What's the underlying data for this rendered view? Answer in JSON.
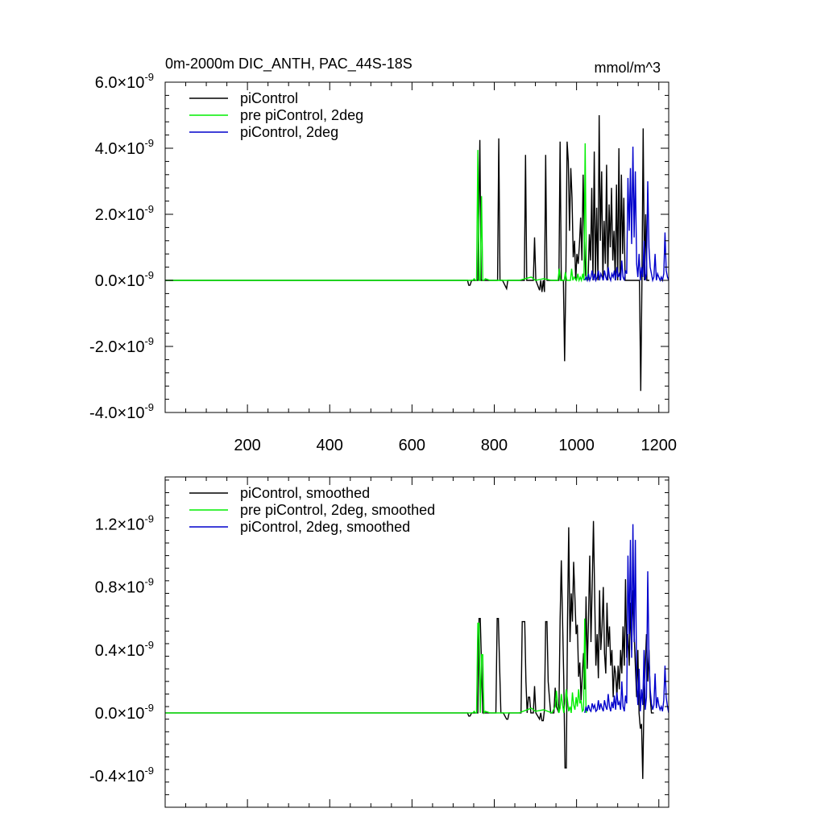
{
  "chart_data": [
    {
      "type": "line",
      "title": "0m-2000m DIC_ANTH, PAC_44S-18S",
      "units": "mmol/m^3",
      "xlim": [
        0,
        1224
      ],
      "ylim": [
        -4e-09,
        6e-09
      ],
      "xticks": [
        200,
        400,
        600,
        800,
        1000,
        1200
      ],
      "xtick_labels": [
        "200",
        "400",
        "600",
        "800",
        "1000",
        "1200"
      ],
      "yticks": [
        -4e-09,
        -2e-09,
        0.0,
        2e-09,
        4e-09,
        6e-09
      ],
      "ytick_mantissas": [
        "-4.0",
        "-2.0",
        "0.0",
        "2.0",
        "4.0",
        "6.0"
      ],
      "ytick_suffix": "×10",
      "ytick_exponent": "-9",
      "legend_position": "top-left",
      "series": [
        {
          "name": "piControl",
          "color": "#000000",
          "x": [
            0,
            720,
            735,
            738,
            741,
            745,
            760,
            765,
            768,
            771,
            808,
            811,
            814,
            820,
            830,
            833,
            836,
            873,
            876,
            879,
            895,
            898,
            901,
            910,
            913,
            916,
            919,
            922,
            925,
            928,
            931,
            957,
            960,
            963,
            968,
            971,
            974,
            977,
            980,
            983,
            986,
            989,
            992,
            995,
            998,
            1001,
            1004,
            1007,
            1010,
            1013,
            1016,
            1019,
            1022,
            1028,
            1031,
            1034,
            1037,
            1040,
            1043,
            1046,
            1049,
            1052,
            1055,
            1058,
            1061,
            1064,
            1067,
            1070,
            1073,
            1076,
            1079,
            1082,
            1085,
            1088,
            1091,
            1094,
            1097,
            1100,
            1103,
            1106,
            1109,
            1112,
            1115,
            1118,
            1121,
            1124,
            1127,
            1130,
            1133,
            1136,
            1150,
            1153,
            1156,
            1159,
            1162,
            1165,
            1168,
            1171,
            1174,
            1177
          ],
          "y": [
            0,
            0,
            0,
            -1.5e-10,
            -1.5e-10,
            0,
            0,
            4.25e-09,
            0,
            0,
            0,
            4.3e-09,
            0,
            0,
            -2.5e-10,
            0,
            0,
            0,
            3.8e-09,
            0,
            0,
            1.3e-09,
            0,
            -3e-10,
            0,
            -3.5e-10,
            0,
            -3.5e-10,
            3.8e-09,
            0,
            0,
            0,
            4.2e-09,
            0,
            0,
            -2.45e-09,
            0,
            4.2e-09,
            3.6e-09,
            1.5e-09,
            3.4e-09,
            2.5e-09,
            7e-10,
            1.2e-09,
            0,
            8e-10,
            5e-10,
            1.1e-09,
            1.9e-09,
            6e-10,
            3.2e-09,
            1.2e-09,
            1.5e-10,
            0,
            1.4e-09,
            6e-10,
            2.8e-09,
            0,
            3.9e-09,
            0,
            2.2e-09,
            0,
            5e-09,
            1.2e-09,
            3.3e-09,
            0,
            1.8e-09,
            5e-10,
            3.5e-09,
            0,
            2.3e-09,
            1e-09,
            2.8e-09,
            6e-10,
            1.5e-09,
            0,
            2.9e-09,
            0,
            4e-09,
            0,
            3.2e-09,
            8e-10,
            2.5e-09,
            0,
            0,
            0,
            0,
            0,
            0,
            0,
            0,
            0,
            -3.35e-09,
            0,
            4.6e-09,
            0,
            2e-09,
            0,
            0,
            0
          ]
        },
        {
          "name": "pre piControl, 2deg",
          "color": "#00ee00",
          "x": [
            0,
            720,
            748,
            751,
            754,
            757,
            760,
            763,
            766,
            769,
            772,
            775,
            778,
            790,
            810,
            830,
            860,
            890,
            900,
            920,
            940,
            955,
            958,
            961,
            970,
            973,
            976,
            985,
            988,
            991,
            994,
            1000,
            1003,
            1006,
            1009,
            1012,
            1015,
            1018,
            1021,
            1024
          ],
          "y": [
            0,
            0,
            0,
            5e-11,
            0,
            0,
            3.95e-09,
            0,
            0,
            2.55e-09,
            0,
            0,
            5e-11,
            0,
            0,
            0,
            0,
            1e-10,
            0,
            5e-11,
            0,
            0,
            3.5e-10,
            0,
            0,
            2.5e-10,
            0,
            0,
            3.5e-10,
            0,
            1e-10,
            0,
            2e-10,
            0,
            1e-10,
            0,
            2e-10,
            0,
            4.15e-09,
            0
          ]
        },
        {
          "name": "piControl, 2deg",
          "color": "#0000cc",
          "x": [
            1020,
            1023,
            1026,
            1029,
            1032,
            1035,
            1038,
            1041,
            1044,
            1047,
            1050,
            1053,
            1056,
            1059,
            1062,
            1065,
            1068,
            1071,
            1074,
            1077,
            1080,
            1083,
            1086,
            1089,
            1092,
            1095,
            1098,
            1101,
            1104,
            1107,
            1110,
            1113,
            1116,
            1119,
            1122,
            1125,
            1128,
            1131,
            1134,
            1137,
            1140,
            1143,
            1146,
            1149,
            1152,
            1155,
            1158,
            1161,
            1164,
            1167,
            1170,
            1173,
            1176,
            1179,
            1182,
            1185,
            1188,
            1191,
            1194,
            1197,
            1200,
            1203,
            1206,
            1209,
            1212,
            1215,
            1218,
            1221,
            1224
          ],
          "y": [
            0,
            1e-10,
            0,
            2e-10,
            0,
            1e-10,
            3e-10,
            0,
            2e-10,
            0,
            1e-10,
            3e-10,
            0,
            2e-10,
            1e-10,
            0,
            3e-10,
            1e-10,
            0,
            4e-10,
            1e-10,
            0,
            2e-10,
            1e-10,
            3e-10,
            0,
            4e-10,
            1e-10,
            2e-10,
            0,
            6e-10,
            1e-10,
            0,
            3e-10,
            2e-10,
            3.1e-09,
            1.5e-09,
            3.4e-09,
            1.1e-09,
            4.05e-09,
            1.3e-09,
            3.3e-09,
            5e-10,
            1e-10,
            8e-10,
            0,
            4e-10,
            1e-10,
            1.2e-09,
            0,
            2e-10,
            3e-09,
            1e-09,
            4e-10,
            2e-10,
            0,
            1e-10,
            8e-10,
            0,
            2e-10,
            1e-10,
            0,
            1e-10,
            0,
            2e-10,
            1.45e-09,
            3e-10,
            1e-10,
            0
          ]
        }
      ]
    },
    {
      "type": "line",
      "xlim": [
        0,
        1224
      ],
      "ylim": [
        -6e-10,
        1.5e-09
      ],
      "xticks": [
        200,
        400,
        600,
        800,
        1000,
        1200
      ],
      "yticks": [
        -4e-10,
        0.0,
        4e-10,
        8e-10,
        1.2e-09
      ],
      "ytick_mantissas": [
        "-0.4",
        "0.0",
        "0.4",
        "0.8",
        "1.2"
      ],
      "ytick_suffix": "×10",
      "ytick_exponent": "-9",
      "legend_position": "top-left",
      "series": [
        {
          "name": "piControl, smoothed",
          "color": "#000000",
          "x": [
            0,
            720,
            735,
            738,
            741,
            745,
            760,
            763,
            766,
            769,
            772,
            778,
            804,
            807,
            810,
            813,
            816,
            819,
            822,
            830,
            833,
            836,
            865,
            868,
            871,
            874,
            877,
            880,
            883,
            886,
            889,
            895,
            898,
            901,
            910,
            913,
            916,
            919,
            922,
            925,
            928,
            931,
            934,
            937,
            945,
            948,
            951,
            954,
            957,
            960,
            963,
            966,
            969,
            972,
            975,
            978,
            981,
            984,
            987,
            990,
            993,
            996,
            999,
            1002,
            1005,
            1008,
            1011,
            1014,
            1017,
            1020,
            1023,
            1026,
            1029,
            1032,
            1035,
            1038,
            1041,
            1044,
            1047,
            1050,
            1053,
            1056,
            1059,
            1062,
            1065,
            1068,
            1071,
            1074,
            1077,
            1080,
            1083,
            1086,
            1089,
            1092,
            1095,
            1098,
            1101,
            1104,
            1107,
            1110,
            1113,
            1116,
            1119,
            1122,
            1125,
            1128,
            1131,
            1134,
            1137,
            1140,
            1143,
            1146,
            1149,
            1152,
            1155,
            1158,
            1161,
            1164,
            1167,
            1170,
            1173,
            1176,
            1179,
            1182,
            1185,
            1188
          ],
          "y": [
            0,
            0,
            0,
            -2e-11,
            -2e-11,
            0,
            0,
            6e-10,
            6e-10,
            3e-10,
            0,
            0,
            0,
            6e-10,
            6e-10,
            3e-10,
            0,
            0,
            0,
            -4e-11,
            -4e-11,
            0,
            0,
            5.8e-10,
            5.8e-10,
            5.8e-10,
            2e-10,
            0,
            1e-10,
            1e-10,
            0,
            0,
            1.7e-10,
            0,
            -4e-11,
            0,
            -5e-11,
            -5e-11,
            2e-11,
            5.8e-10,
            5.8e-10,
            2e-10,
            1e-10,
            0,
            0,
            1.6e-10,
            4e-11,
            2e-11,
            0,
            5.9e-10,
            9.7e-10,
            5.8e-10,
            2e-10,
            -3.5e-10,
            -3.5e-10,
            5.8e-10,
            1.18e-09,
            4.5e-10,
            7.6e-10,
            5.8e-10,
            9.6e-10,
            7.3e-10,
            5e-10,
            5.6e-10,
            2.3e-10,
            3.2e-10,
            8e-11,
            2.4e-10,
            3.8e-10,
            1.5e-10,
            7.4e-10,
            2.8e-10,
            5.8e-10,
            1e-09,
            4.5e-10,
            8e-10,
            1.22e-09,
            7.5e-10,
            3e-10,
            5e-10,
            2.2e-10,
            7.8e-10,
            4e-10,
            5.5e-10,
            8e-10,
            3.8e-10,
            2.5e-10,
            7e-10,
            4.2e-10,
            5.5e-10,
            3e-10,
            4e-10,
            1e-10,
            3e-10,
            2.5e-10,
            1e-10,
            3e-10,
            1.5e-10,
            4e-10,
            2.5e-10,
            5.5e-10,
            3e-10,
            8.5e-10,
            3.5e-10,
            5e-10,
            3e-10,
            7e-10,
            4e-10,
            7.8e-10,
            5e-10,
            3e-10,
            1e-10,
            4e-10,
            0,
            -1e-10,
            -7e-11,
            -4.2e-10,
            1e-10,
            3e-10,
            5e-10,
            2e-10,
            4e-10,
            1e-10,
            0,
            0,
            0
          ]
        },
        {
          "name": "pre piControl, 2deg, smoothed",
          "color": "#00ee00",
          "x": [
            0,
            720,
            748,
            751,
            754,
            757,
            760,
            763,
            766,
            769,
            772,
            775,
            778,
            790,
            810,
            830,
            860,
            880,
            890,
            900,
            920,
            940,
            948,
            951,
            954,
            957,
            960,
            963,
            966,
            969,
            972,
            975,
            978,
            981,
            984,
            987,
            990,
            993,
            996,
            999,
            1002,
            1005,
            1008,
            1011,
            1014,
            1017,
            1020,
            1023,
            1024
          ],
          "y": [
            0,
            0,
            0,
            1e-11,
            0,
            0,
            5.7e-10,
            5.7e-10,
            0,
            3.7e-10,
            3.7e-10,
            0,
            1e-11,
            0,
            0,
            0,
            0,
            2e-11,
            3e-11,
            1e-11,
            2e-11,
            0,
            4e-11,
            1.4e-10,
            6e-11,
            0,
            3e-11,
            1.2e-10,
            5e-11,
            0,
            6e-11,
            1.5e-10,
            8e-11,
            1e-11,
            4e-11,
            0,
            1.3e-10,
            5e-11,
            2e-11,
            1e-10,
            4e-11,
            1.5e-10,
            6e-11,
            8e-11,
            1e-11,
            2e-11,
            6e-10,
            2e-11,
            0
          ]
        },
        {
          "name": "piControl, 2deg, smoothed",
          "color": "#0000cc",
          "x": [
            1020,
            1023,
            1026,
            1029,
            1032,
            1035,
            1038,
            1041,
            1044,
            1047,
            1050,
            1053,
            1056,
            1059,
            1062,
            1065,
            1068,
            1071,
            1074,
            1077,
            1080,
            1083,
            1086,
            1089,
            1092,
            1095,
            1098,
            1101,
            1104,
            1107,
            1110,
            1113,
            1116,
            1119,
            1122,
            1125,
            1128,
            1131,
            1134,
            1137,
            1140,
            1143,
            1146,
            1149,
            1152,
            1155,
            1158,
            1161,
            1164,
            1167,
            1170,
            1173,
            1176,
            1179,
            1182,
            1185,
            1188,
            1191,
            1194,
            1197,
            1200,
            1203,
            1206,
            1209,
            1212,
            1215,
            1218,
            1221,
            1224
          ],
          "y": [
            0,
            4e-11,
            1e-11,
            5e-11,
            2e-11,
            1e-11,
            6e-11,
            3e-11,
            5e-11,
            1e-11,
            2e-11,
            8e-11,
            2e-11,
            6e-11,
            3e-11,
            1e-11,
            8e-11,
            4e-11,
            2e-11,
            1.2e-10,
            4e-11,
            1e-11,
            7e-11,
            3e-11,
            1.1e-10,
            2e-11,
            1.3e-10,
            5e-11,
            7e-11,
            2e-11,
            2e-10,
            4e-11,
            1e-11,
            1.1e-10,
            6e-11,
            1e-09,
            5e-10,
            1.1e-09,
            3.5e-10,
            1.2e-09,
            4.5e-10,
            1.1e-09,
            2e-10,
            5e-11,
            2.8e-10,
            1e-11,
            1.5e-10,
            5e-11,
            4e-10,
            2e-11,
            1e-10,
            9e-10,
            3.5e-10,
            1.5e-10,
            6e-11,
            2e-11,
            5e-11,
            2.5e-10,
            3e-11,
            1e-10,
            5e-11,
            2e-11,
            4e-11,
            1e-11,
            8e-11,
            3e-10,
            1e-10,
            4e-11,
            0
          ]
        }
      ]
    }
  ]
}
